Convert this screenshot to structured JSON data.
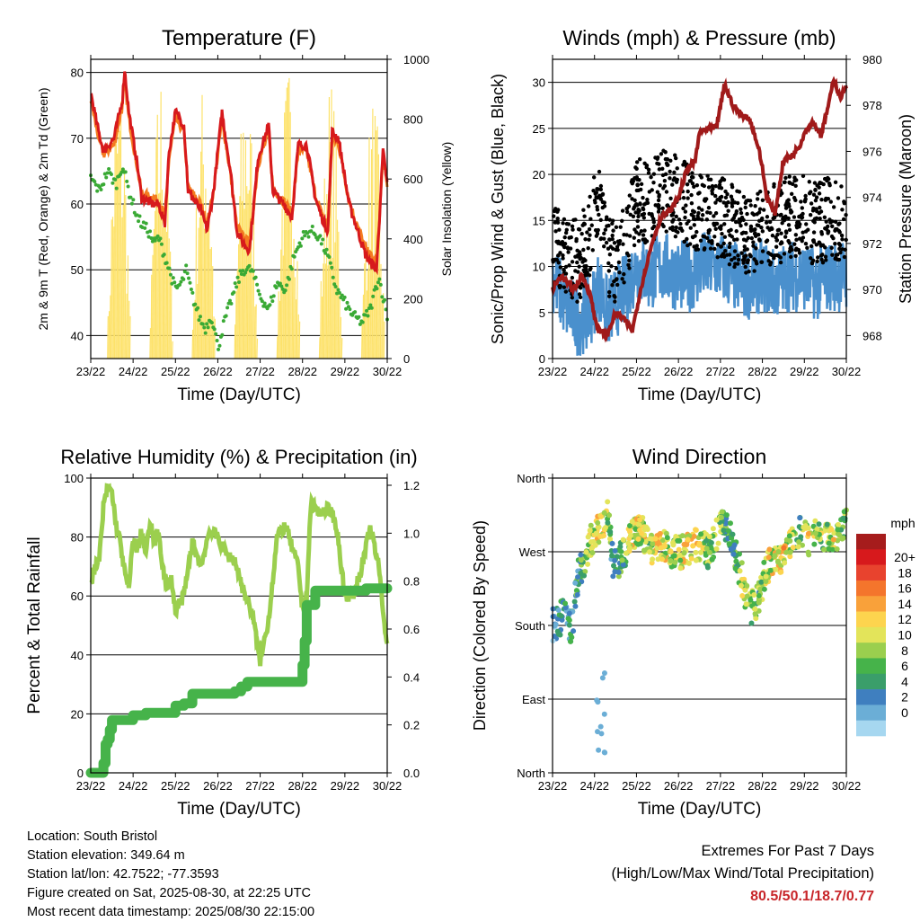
{
  "info": {
    "location": "Location: South Bristol",
    "elevation": "Station elevation: 349.64 m",
    "latlon": "Station lat/lon: 42.7522; -77.3593",
    "created": "Figure created on Sat, 2025-08-30, at 22:25 UTC",
    "latest": "Most recent data timestamp: 2025/08/30 22:15:00"
  },
  "extremes": {
    "title": "Extremes For Past 7 Days",
    "subtitle": "(High/Low/Max Wind/Total Precipitation)",
    "values": "80.5/50.1/18.7/0.77"
  },
  "colors": {
    "temp_2m": "#d7191c",
    "temp_9m": "#f47c20",
    "dewpoint": "#3aaa35",
    "solar": "#fde26a",
    "wind": "#4a90cd",
    "gust": "#000000",
    "pressure": "#a01a1a",
    "rh": "#9bcf4e",
    "precip": "#46b34a",
    "extremes": "#c8262a"
  },
  "chart_data": [
    {
      "type": "line",
      "title": "Temperature (F)",
      "xlabel": "Time (Day/UTC)",
      "ylabel": "2m & 9m T (Red, Orange) & 2m Td (Green)",
      "y2label": "Solar Insolation (Yellow)",
      "x_ticks": [
        "23/22",
        "24/22",
        "25/22",
        "26/22",
        "27/22",
        "28/22",
        "29/22",
        "30/22"
      ],
      "xlim": [
        0,
        7
      ],
      "ylim": [
        36.5,
        82
      ],
      "y_ticks": [
        40,
        50,
        60,
        70,
        80
      ],
      "y2lim": [
        0,
        1000
      ],
      "y2_ticks": [
        0,
        200,
        400,
        600,
        800,
        1000
      ],
      "grid": true,
      "series": [
        {
          "key": "temp_2m",
          "x": [
            0,
            0.15,
            0.3,
            0.55,
            0.75,
            0.8,
            0.9,
            1.1,
            1.2,
            1.45,
            1.6,
            1.75,
            1.85,
            2.0,
            2.2,
            2.3,
            2.6,
            2.75,
            2.9,
            3.1,
            3.3,
            3.45,
            3.6,
            3.75,
            3.95,
            4.2,
            4.3,
            4.6,
            4.75,
            4.9,
            5.1,
            5.3,
            5.45,
            5.6,
            5.7,
            5.85,
            6.1,
            6.25,
            6.5,
            6.75,
            6.9,
            7.0
          ],
          "y": [
            77,
            72,
            68,
            70,
            76,
            80.5,
            74,
            66,
            61,
            60,
            60,
            57,
            68,
            74,
            72,
            62,
            59,
            56,
            62,
            74,
            65,
            56,
            54,
            53,
            67,
            72,
            62,
            59.5,
            58,
            69,
            69,
            61,
            58,
            56,
            71,
            70,
            60,
            57,
            52,
            50,
            68,
            63
          ]
        },
        {
          "key": "temp_9m",
          "x": [
            0,
            0.15,
            0.3,
            0.55,
            0.75,
            0.8,
            0.9,
            1.1,
            1.2,
            1.45,
            1.6,
            1.75,
            1.85,
            2.0,
            2.2,
            2.3,
            2.6,
            2.75,
            2.9,
            3.1,
            3.3,
            3.45,
            3.6,
            3.75,
            3.95,
            4.2,
            4.3,
            4.6,
            4.75,
            4.9,
            5.1,
            5.3,
            5.45,
            5.6,
            5.7,
            5.85,
            6.1,
            6.25,
            6.5,
            6.75,
            6.9,
            7.0
          ],
          "y": [
            76,
            71,
            67.5,
            69,
            75,
            79,
            73,
            65.5,
            61.5,
            61,
            60.5,
            58,
            67,
            73,
            71,
            62.5,
            60,
            57,
            62,
            73,
            64.5,
            56.5,
            55,
            54,
            66,
            71,
            62.5,
            60,
            58.5,
            68,
            68,
            61.5,
            58.5,
            56.5,
            70,
            69,
            60.5,
            57.5,
            53,
            51,
            67,
            62.5
          ]
        },
        {
          "key": "dewpoint",
          "x": [
            0,
            0.2,
            0.4,
            0.6,
            0.75,
            0.9,
            1.0,
            1.1,
            1.2,
            1.35,
            1.5,
            1.6,
            1.75,
            1.9,
            2.0,
            2.15,
            2.25,
            2.4,
            2.55,
            2.7,
            2.85,
            2.95,
            3.0,
            3.15,
            3.3,
            3.45,
            3.6,
            3.8,
            4.0,
            4.2,
            4.4,
            4.6,
            4.8,
            5.0,
            5.2,
            5.4,
            5.6,
            5.8,
            6.0,
            6.2,
            6.4,
            6.6,
            6.8,
            7.0
          ],
          "y": [
            64,
            62,
            65,
            63,
            66,
            62,
            60,
            58,
            57,
            56,
            54,
            55,
            52,
            49,
            47,
            48,
            50,
            46,
            43,
            41,
            43,
            40,
            38,
            42,
            45,
            48,
            50,
            50,
            46,
            44,
            48,
            47,
            52,
            55,
            56,
            55,
            52,
            47,
            45,
            43,
            42,
            44,
            49,
            43
          ]
        },
        {
          "key": "solar",
          "type": "spikes",
          "days": [
            {
              "start": 0.37,
              "end": 0.95,
              "peak": 1.0
            },
            {
              "start": 1.37,
              "end": 1.95,
              "peak": 1.0
            },
            {
              "start": 2.37,
              "end": 2.95,
              "peak": 0.95
            },
            {
              "start": 3.37,
              "end": 3.95,
              "peak": 1.0
            },
            {
              "start": 4.37,
              "end": 4.95,
              "peak": 1.0
            },
            {
              "start": 5.37,
              "end": 5.95,
              "peak": 0.95
            },
            {
              "start": 6.37,
              "end": 6.95,
              "peak": 0.9
            }
          ]
        }
      ]
    },
    {
      "type": "scatter",
      "title": "Winds (mph) & Pressure (mb)",
      "xlabel": "Time (Day/UTC)",
      "ylabel": "Sonic/Prop Wind & Gust (Blue, Black)",
      "y2label": "Station Pressure (Maroon)",
      "x_ticks": [
        "23/22",
        "24/22",
        "25/22",
        "26/22",
        "27/22",
        "28/22",
        "29/22",
        "30/22"
      ],
      "xlim": [
        0,
        7
      ],
      "ylim": [
        0,
        32.5
      ],
      "y_ticks": [
        0,
        5,
        10,
        15,
        20,
        25,
        30
      ],
      "y2lim": [
        967.0,
        980.0
      ],
      "y2_ticks": [
        968,
        970,
        972,
        974,
        976,
        978,
        980
      ],
      "grid": true,
      "series": [
        {
          "key": "wind",
          "x": [
            0,
            0.3,
            0.6,
            0.9,
            1.1,
            1.3,
            1.5,
            1.8,
            2.0,
            2.3,
            2.6,
            3.0,
            3.3,
            3.6,
            4.0,
            4.3,
            4.6,
            5.0,
            5.3,
            5.6,
            6.0,
            6.3,
            6.6,
            7.0
          ],
          "y": [
            9,
            6,
            4,
            5,
            8,
            5,
            6,
            8,
            10,
            9,
            10,
            9,
            9,
            10,
            10,
            9,
            8,
            9,
            8,
            9,
            9,
            8,
            9,
            9
          ]
        },
        {
          "key": "gust",
          "x": [
            0,
            0.3,
            0.6,
            0.9,
            1.1,
            1.3,
            1.5,
            1.8,
            2.0,
            2.3,
            2.6,
            3.0,
            3.3,
            3.6,
            4.0,
            4.3,
            4.6,
            5.0,
            5.3,
            5.6,
            6.0,
            6.3,
            6.6,
            7.0
          ],
          "y": [
            12,
            11,
            10,
            13,
            17,
            11,
            10,
            13,
            17,
            16,
            18,
            17,
            16,
            15,
            15,
            14,
            13,
            14,
            14,
            15,
            15,
            14,
            15,
            14
          ]
        },
        {
          "key": "pressure",
          "x": [
            0,
            0.2,
            0.5,
            0.7,
            0.9,
            1.0,
            1.1,
            1.3,
            1.5,
            1.7,
            1.9,
            2.1,
            2.2,
            2.4,
            2.6,
            2.8,
            3.0,
            3.2,
            3.4,
            3.5,
            3.7,
            3.9,
            4.1,
            4.3,
            4.5,
            4.7,
            4.9,
            5.0,
            5.1,
            5.3,
            5.5,
            5.7,
            5.9,
            6.0,
            6.2,
            6.4,
            6.6,
            6.7,
            6.85,
            7.0
          ],
          "y": [
            970.0,
            970.6,
            970.0,
            970.6,
            969.8,
            968.8,
            968.2,
            968.0,
            969.0,
            968.7,
            968.2,
            970.0,
            970.8,
            972.2,
            973.2,
            973.4,
            974.0,
            975.2,
            975.6,
            976.8,
            977.0,
            977.0,
            978.9,
            978.0,
            977.6,
            977.4,
            976.2,
            975.3,
            974.0,
            973.3,
            975.6,
            975.8,
            976.3,
            976.8,
            977.3,
            976.7,
            978.2,
            979.2,
            978.3,
            978.8
          ]
        }
      ]
    },
    {
      "type": "line",
      "title": "Relative Humidity (%) & Precipitation (in)",
      "xlabel": "Time (Day/UTC)",
      "ylabel": "Percent & Total Rainfall",
      "x_ticks": [
        "23/22",
        "24/22",
        "25/22",
        "26/22",
        "27/22",
        "28/22",
        "29/22",
        "30/22"
      ],
      "xlim": [
        0,
        7
      ],
      "ylim": [
        0,
        100
      ],
      "y_ticks": [
        0,
        20,
        40,
        60,
        80,
        100
      ],
      "y2lim": [
        0,
        1.23
      ],
      "y2_ticks": [
        "0.0",
        "0.2",
        "0.4",
        "0.6",
        "0.8",
        "1.0",
        "1.2"
      ],
      "grid": true,
      "series": [
        {
          "key": "rh",
          "x": [
            0,
            0.1,
            0.2,
            0.3,
            0.4,
            0.5,
            0.6,
            0.7,
            0.8,
            0.9,
            1.0,
            1.1,
            1.2,
            1.3,
            1.4,
            1.5,
            1.6,
            1.7,
            1.8,
            1.9,
            2.0,
            2.2,
            2.4,
            2.6,
            2.8,
            3.0,
            3.2,
            3.4,
            3.6,
            3.8,
            4.0,
            4.2,
            4.4,
            4.6,
            4.8,
            4.9,
            5.0,
            5.1,
            5.2,
            5.4,
            5.6,
            5.8,
            6.0,
            6.2,
            6.4,
            6.6,
            6.8,
            7.0
          ],
          "y": [
            65,
            70,
            72,
            90,
            97,
            95,
            84,
            78,
            68,
            62,
            80,
            75,
            82,
            74,
            85,
            78,
            82,
            70,
            62,
            66,
            55,
            60,
            78,
            70,
            82,
            80,
            74,
            72,
            62,
            55,
            38,
            52,
            80,
            84,
            74,
            70,
            55,
            60,
            92,
            88,
            90,
            84,
            60,
            60,
            70,
            83,
            70,
            42
          ]
        },
        {
          "key": "precip",
          "x": [
            0,
            0.25,
            0.3,
            0.35,
            0.4,
            0.45,
            0.5,
            0.6,
            0.9,
            1.0,
            1.2,
            1.3,
            1.45,
            1.7,
            1.8,
            2.0,
            2.2,
            2.4,
            2.6,
            2.8,
            3.0,
            3.4,
            3.55,
            3.7,
            4.0,
            4.5,
            4.9,
            5.0,
            5.05,
            5.1,
            5.3,
            5.6,
            6.0,
            6.5,
            7.0
          ],
          "y": [
            0,
            0,
            0.04,
            0.12,
            0.14,
            0.18,
            0.22,
            0.22,
            0.22,
            0.24,
            0.24,
            0.25,
            0.25,
            0.25,
            0.25,
            0.28,
            0.29,
            0.33,
            0.33,
            0.33,
            0.33,
            0.34,
            0.36,
            0.38,
            0.38,
            0.38,
            0.38,
            0.45,
            0.55,
            0.7,
            0.76,
            0.76,
            0.76,
            0.77,
            0.77
          ]
        }
      ]
    },
    {
      "type": "scatter",
      "title": "Wind Direction",
      "xlabel": "Time (Day/UTC)",
      "ylabel": "Direction (Colored By Speed)",
      "x_ticks": [
        "23/22",
        "24/22",
        "25/22",
        "26/22",
        "27/22",
        "28/22",
        "29/22",
        "30/22"
      ],
      "xlim": [
        0,
        7
      ],
      "ylim": [
        0,
        360
      ],
      "y_ticks": [
        "North",
        "East",
        "South",
        "West",
        "North"
      ],
      "grid": true,
      "colorbar": {
        "label": "mph",
        "ticks": [
          "20+",
          "18",
          "16",
          "14",
          "12",
          "10",
          "8",
          "6",
          "4",
          "2",
          "0"
        ],
        "colors": [
          "#a61c1c",
          "#d7191c",
          "#e8432e",
          "#f4752c",
          "#f9a13a",
          "#fdd44e",
          "#e3e45a",
          "#9bcf4e",
          "#46b34a",
          "#3a9e6a",
          "#3f7fbf",
          "#6baed6",
          "#a6d7f0"
        ]
      },
      "series": [
        {
          "key": "direction",
          "x": [
            0,
            0.15,
            0.3,
            0.45,
            0.6,
            0.75,
            0.9,
            1.05,
            1.15,
            1.3,
            1.45,
            1.6,
            1.75,
            1.9,
            2.1,
            2.3,
            2.5,
            2.7,
            2.9,
            3.1,
            3.3,
            3.5,
            3.7,
            3.9,
            4.1,
            4.3,
            4.5,
            4.7,
            4.9,
            5.1,
            5.3,
            5.5,
            5.7,
            5.9,
            6.1,
            6.3,
            6.5,
            6.7,
            6.9,
            7.0
          ],
          "y": [
            180,
            185,
            200,
            170,
            240,
            260,
            280,
            300,
            300,
            320,
            250,
            260,
            270,
            290,
            300,
            275,
            275,
            275,
            270,
            270,
            275,
            280,
            270,
            290,
            305,
            280,
            240,
            200,
            210,
            250,
            265,
            260,
            280,
            300,
            280,
            290,
            290,
            285,
            300,
            310
          ],
          "speed": [
            3,
            4,
            5,
            5,
            6,
            8,
            10,
            12,
            14,
            10,
            4,
            6,
            10,
            12,
            12,
            10,
            14,
            12,
            10,
            12,
            14,
            12,
            8,
            10,
            8,
            6,
            10,
            10,
            8,
            12,
            12,
            14,
            10,
            8,
            12,
            10,
            10,
            12,
            10,
            8
          ]
        }
      ]
    }
  ]
}
